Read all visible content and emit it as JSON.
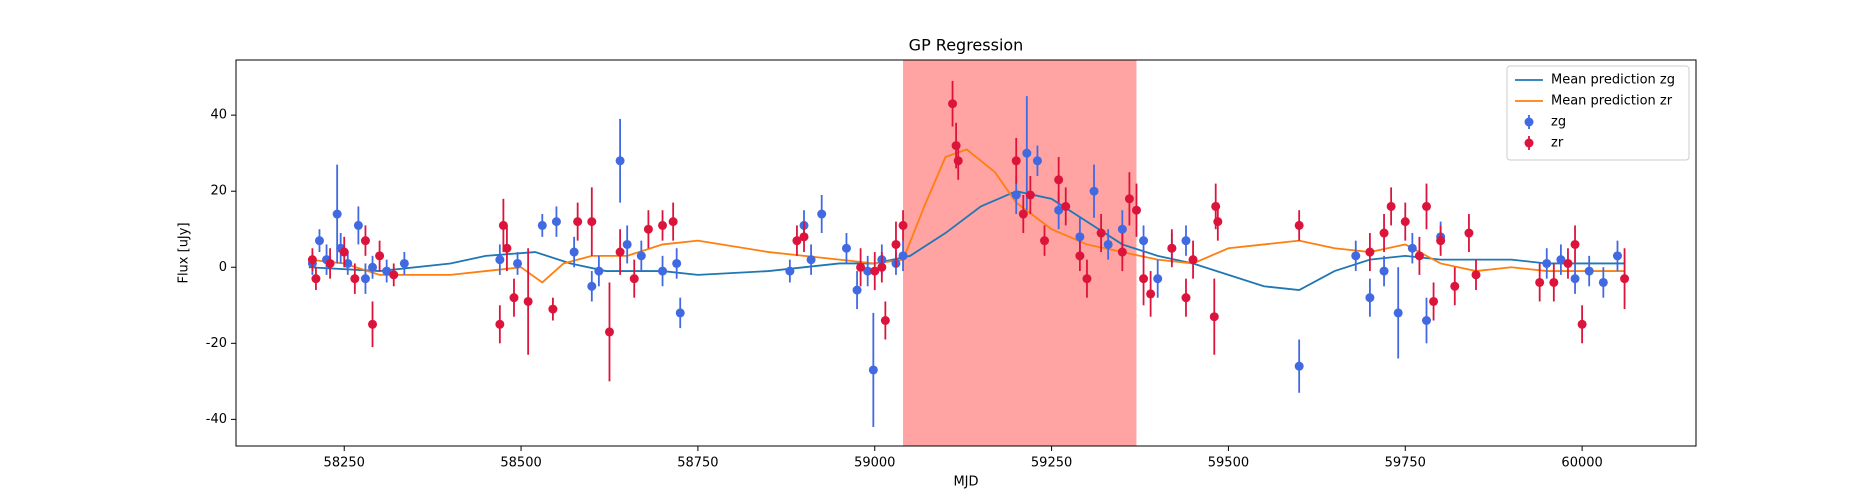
{
  "chart_data": {
    "type": "scatter",
    "title": "GP Regression",
    "xlabel": "MJD",
    "ylabel": "Flux [uJy]",
    "xlim": [
      58097,
      60161
    ],
    "ylim": [
      -47,
      54.5
    ],
    "xticks": [
      58250,
      58500,
      58750,
      59000,
      59250,
      59500,
      59750,
      60000
    ],
    "yticks": [
      -40,
      -20,
      0,
      20,
      40
    ],
    "legend": "upper right",
    "span": {
      "xmin": 59040,
      "xmax": 59370,
      "color": "#ff6666"
    },
    "series": [
      {
        "name": "Mean prediction zg",
        "style": "line",
        "color": "#1f77b4",
        "x": [
          58200,
          58300,
          58400,
          58450,
          58520,
          58570,
          58620,
          58700,
          58750,
          58850,
          58950,
          59000,
          59050,
          59100,
          59150,
          59200,
          59250,
          59300,
          59350,
          59400,
          59450,
          59500,
          59550,
          59600,
          59650,
          59700,
          59750,
          59800,
          59900,
          59950,
          60060
        ],
        "values": [
          0,
          -1,
          1,
          3,
          4,
          1,
          -1,
          -1,
          -2,
          -1,
          1,
          1,
          3,
          9,
          16,
          20,
          18,
          12,
          6,
          3,
          1,
          -2,
          -5,
          -6,
          -1,
          2,
          3,
          2,
          2,
          1,
          1
        ]
      },
      {
        "name": "Mean prediction zr",
        "style": "line",
        "color": "#ff7f0e",
        "x": [
          58200,
          58250,
          58300,
          58400,
          58450,
          58500,
          58530,
          58560,
          58600,
          58650,
          58700,
          58750,
          58850,
          58950,
          59000,
          59040,
          59070,
          59100,
          59130,
          59170,
          59200,
          59250,
          59300,
          59350,
          59400,
          59450,
          59500,
          59550,
          59600,
          59650,
          59700,
          59750,
          59800,
          59850,
          59900,
          59950,
          60060
        ],
        "values": [
          2,
          1,
          -2,
          -2,
          -1,
          0,
          -4,
          1,
          3,
          3,
          6,
          7,
          4,
          2,
          1,
          2,
          16,
          29,
          31,
          25,
          17,
          10,
          6,
          4,
          2,
          1,
          5,
          6,
          7,
          5,
          4,
          6,
          1,
          -1,
          0,
          -1,
          -1
        ]
      },
      {
        "name": "zg",
        "style": "errorbar",
        "color": "#4169e1",
        "x": [
          58205,
          58215,
          58225,
          58240,
          58245,
          58255,
          58270,
          58280,
          58290,
          58310,
          58335,
          58470,
          58495,
          58530,
          58550,
          58575,
          58600,
          58610,
          58640,
          58650,
          58670,
          58700,
          58720,
          58725,
          58880,
          58900,
          58910,
          58925,
          58960,
          58975,
          58990,
          58998,
          59010,
          59030,
          59040,
          59200,
          59215,
          59230,
          59260,
          59290,
          59310,
          59330,
          59350,
          59380,
          59400,
          59420,
          59440,
          59600,
          59680,
          59700,
          59720,
          59740,
          59760,
          59780,
          59800,
          59950,
          59970,
          59990,
          60010,
          60030,
          60050
        ],
        "values": [
          1,
          7,
          2,
          14,
          5,
          1,
          11,
          -3,
          0,
          -1,
          1,
          2,
          1,
          11,
          12,
          4,
          -5,
          -1,
          28,
          6,
          3,
          -1,
          1,
          -12,
          -1,
          11,
          2,
          14,
          5,
          -6,
          -1,
          -27,
          2,
          1,
          3,
          19,
          30,
          28,
          15,
          8,
          20,
          6,
          10,
          7,
          -3,
          5,
          7,
          -26,
          3,
          -8,
          -1,
          -12,
          5,
          -14,
          8,
          1,
          2,
          -3,
          -1,
          -4,
          3
        ],
        "errors": [
          3,
          3,
          4,
          13,
          4,
          3,
          5,
          4,
          3,
          3,
          3,
          4,
          3,
          3,
          4,
          4,
          4,
          4,
          11,
          5,
          4,
          4,
          4,
          4,
          3,
          4,
          4,
          5,
          4,
          5,
          4,
          15,
          4,
          3,
          4,
          5,
          15,
          4,
          5,
          5,
          7,
          4,
          5,
          4,
          5,
          4,
          4,
          7,
          4,
          5,
          4,
          12,
          4,
          6,
          4,
          4,
          4,
          4,
          4,
          4,
          4
        ]
      },
      {
        "name": "zr",
        "style": "errorbar",
        "color": "#dc143c",
        "x": [
          58205,
          58210,
          58230,
          58250,
          58265,
          58280,
          58290,
          58300,
          58320,
          58470,
          58475,
          58480,
          58490,
          58510,
          58545,
          58580,
          58600,
          58625,
          58640,
          58660,
          58680,
          58700,
          58715,
          58890,
          58900,
          58980,
          59000,
          59010,
          59015,
          59030,
          59040,
          59110,
          59115,
          59118,
          59200,
          59210,
          59220,
          59240,
          59260,
          59270,
          59290,
          59300,
          59320,
          59350,
          59360,
          59370,
          59380,
          59390,
          59420,
          59440,
          59450,
          59480,
          59482,
          59485,
          59600,
          59700,
          59720,
          59730,
          59750,
          59770,
          59780,
          59790,
          59800,
          59820,
          59840,
          59850,
          59940,
          59960,
          59980,
          59990,
          60000,
          60060
        ],
        "values": [
          2,
          -3,
          1,
          4,
          -3,
          7,
          -15,
          3,
          -2,
          -15,
          11,
          5,
          -8,
          -9,
          -11,
          12,
          12,
          -17,
          4,
          -3,
          10,
          11,
          12,
          7,
          8,
          0,
          -1,
          0,
          -14,
          6,
          11,
          43,
          32,
          28,
          28,
          14,
          19,
          7,
          23,
          16,
          3,
          -3,
          9,
          4,
          18,
          15,
          -3,
          -7,
          5,
          -8,
          2,
          -13,
          16,
          12,
          11,
          4,
          9,
          16,
          12,
          3,
          16,
          -9,
          7,
          -5,
          9,
          -2,
          -4,
          -4,
          1,
          6,
          -15,
          -3
        ],
        "errors": [
          3,
          3,
          4,
          4,
          4,
          4,
          6,
          4,
          3,
          5,
          7,
          6,
          5,
          14,
          3,
          5,
          9,
          13,
          6,
          5,
          5,
          4,
          5,
          4,
          4,
          5,
          5,
          4,
          5,
          6,
          4,
          6,
          6,
          5,
          6,
          5,
          5,
          4,
          6,
          5,
          4,
          5,
          5,
          5,
          7,
          7,
          7,
          6,
          5,
          5,
          5,
          10,
          6,
          5,
          4,
          5,
          5,
          5,
          5,
          5,
          6,
          5,
          4,
          5,
          5,
          4,
          5,
          5,
          4,
          5,
          5,
          8
        ]
      }
    ]
  }
}
